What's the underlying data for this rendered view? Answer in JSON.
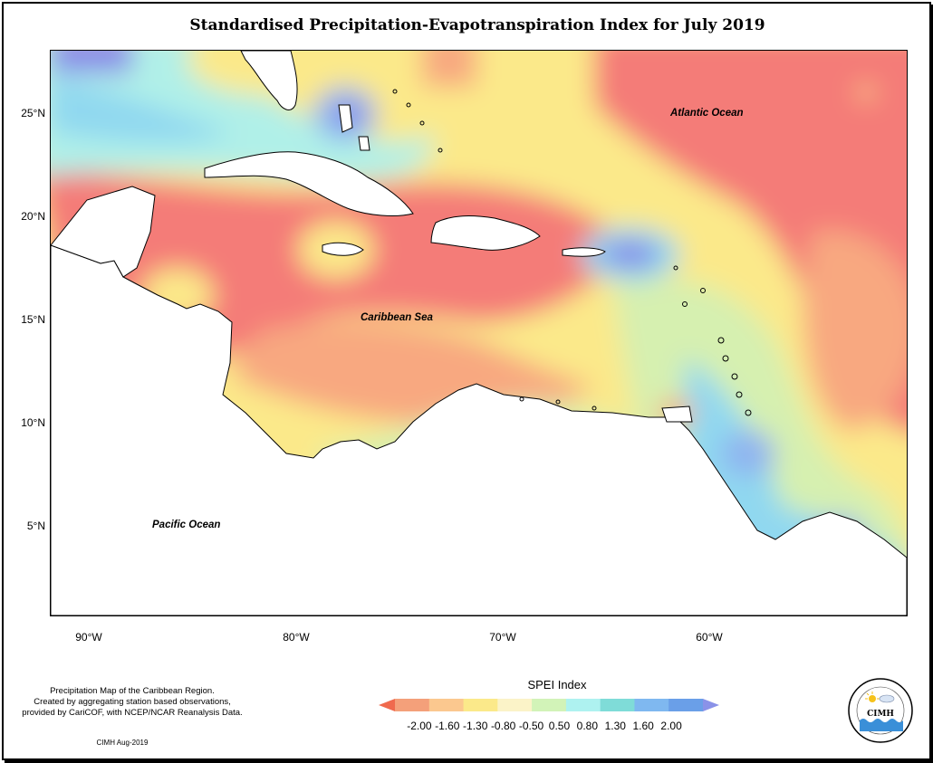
{
  "title": "Standardised Precipitation-Evapotranspiration Index for July 2019",
  "map": {
    "lat_range": [
      0.5,
      28
    ],
    "lon_range": [
      -92,
      -50
    ],
    "y_axis_labels": [
      "25°N",
      "20°N",
      "15°N",
      "10°N",
      "5°N"
    ],
    "x_axis_labels": [
      "90°W",
      "80°W",
      "70°W",
      "60°W"
    ],
    "ocean_labels": {
      "atlantic": "Atlantic Ocean",
      "caribbean": "Caribbean Sea",
      "pacific": "Pacific Ocean"
    }
  },
  "legend": {
    "title": "SPEI Index",
    "ticks": [
      "-2.00",
      "-1.60",
      "-1.30",
      "-0.80",
      "-0.50",
      "0.50",
      "0.80",
      "1.30",
      "1.60",
      "2.00"
    ],
    "colors": [
      "#f06a4e",
      "#f4a07a",
      "#fbc88f",
      "#fbe98a",
      "#fbf3c8",
      "#d2f3b8",
      "#aef2f0",
      "#7fdcd8",
      "#7fb8f0",
      "#6a9fe8",
      "#8a92e8"
    ]
  },
  "colors": {
    "strong_dry": "#f47c78",
    "dry": "#f8a880",
    "moderately_dry": "#fbd38a",
    "slightly_dry": "#fbeb8a",
    "near_normal": "#d6f0b0",
    "slightly_wet": "#b0f0e8",
    "wet": "#90d8f0",
    "very_wet": "#8fb4f0",
    "extreme_wet": "#8a8ce8"
  },
  "footer": {
    "note_lines": [
      "Precipitation Map of the Caribbean Region.",
      "Created by aggregating station based observations,",
      "provided by CariCOF, with NCEP/NCAR Reanalysis Data."
    ],
    "credit": "CIMH Aug-2019",
    "logo_text": "CIMH"
  }
}
